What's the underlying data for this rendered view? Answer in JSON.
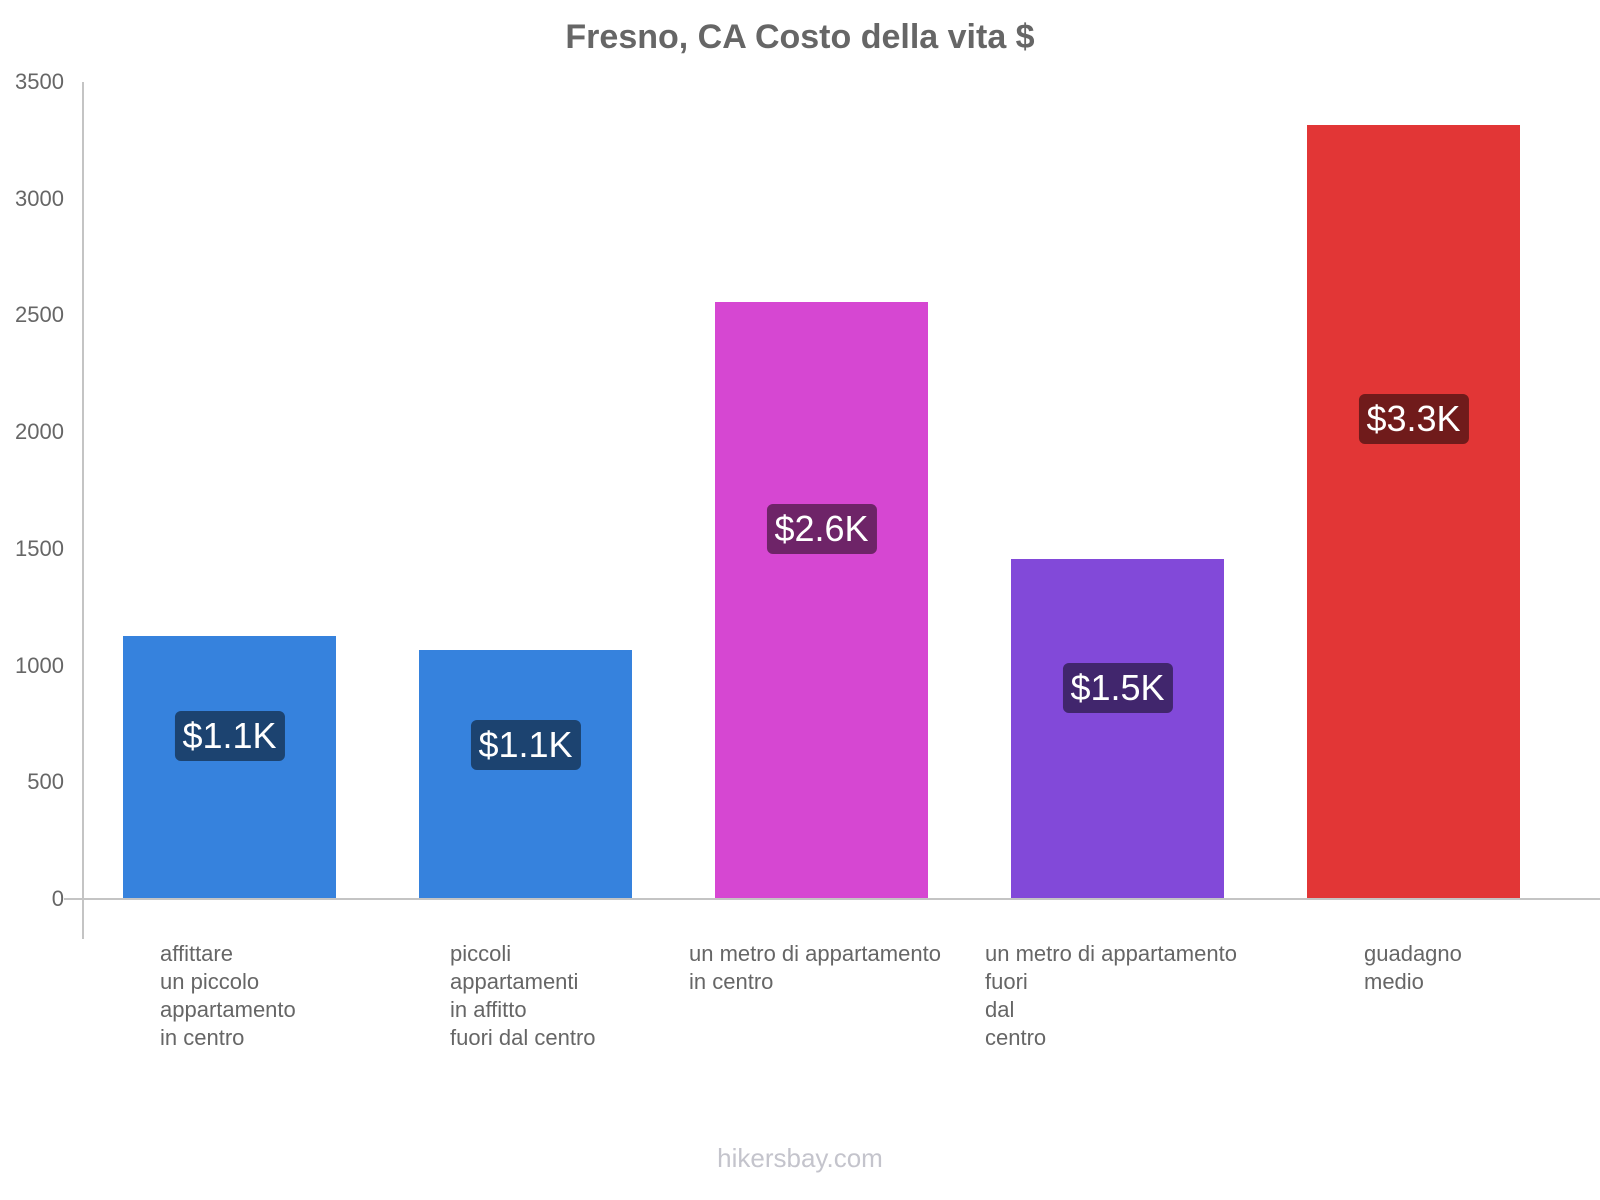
{
  "title": "Fresno, CA Costo della vita $",
  "footer": "hikersbay.com",
  "yticks": [
    "3500",
    "3000",
    "2500",
    "2000",
    "1500",
    "1000",
    "500",
    "0"
  ],
  "bars": [
    {
      "label": "affittare\nun piccolo\nappartamento\nin centro",
      "value": 1127,
      "badge": "$1.1K",
      "color": "#3682dd",
      "badge_color": "#1c4370"
    },
    {
      "label": "piccoli\nappartamenti\nin affitto\nfuori dal centro",
      "value": 1067,
      "badge": "$1.1K",
      "color": "#3682dd",
      "badge_color": "#1c4370"
    },
    {
      "label": "un metro di appartamento\nin centro",
      "value": 2558,
      "badge": "$2.6K",
      "color": "#d647d2",
      "badge_color": "#6e2468"
    },
    {
      "label": "un metro di appartamento\nfuori\ndal\ncentro",
      "value": 1457,
      "badge": "$1.5K",
      "color": "#8249d9",
      "badge_color": "#41266d"
    },
    {
      "label": "guadagno\nmedio",
      "value": 3316,
      "badge": "$3.3K",
      "color": "#e23636",
      "badge_color": "#701b1b"
    }
  ],
  "chart_data": {
    "type": "bar",
    "title": "Fresno, CA Costo della vita $",
    "categories": [
      "affittare un piccolo appartamento in centro",
      "piccoli appartamenti in affitto fuori dal centro",
      "un metro di appartamento in centro",
      "un metro di appartamento fuori dal centro",
      "guadagno medio"
    ],
    "values": [
      1127,
      1067,
      2558,
      1457,
      3316
    ],
    "data_labels": [
      "$1.1K",
      "$1.1K",
      "$2.6K",
      "$1.5K",
      "$3.3K"
    ],
    "xlabel": "",
    "ylabel": "",
    "ylim": [
      0,
      3500
    ],
    "yticks": [
      0,
      500,
      1000,
      1500,
      2000,
      2500,
      3000,
      3500
    ],
    "grid": false,
    "legend": "none"
  }
}
